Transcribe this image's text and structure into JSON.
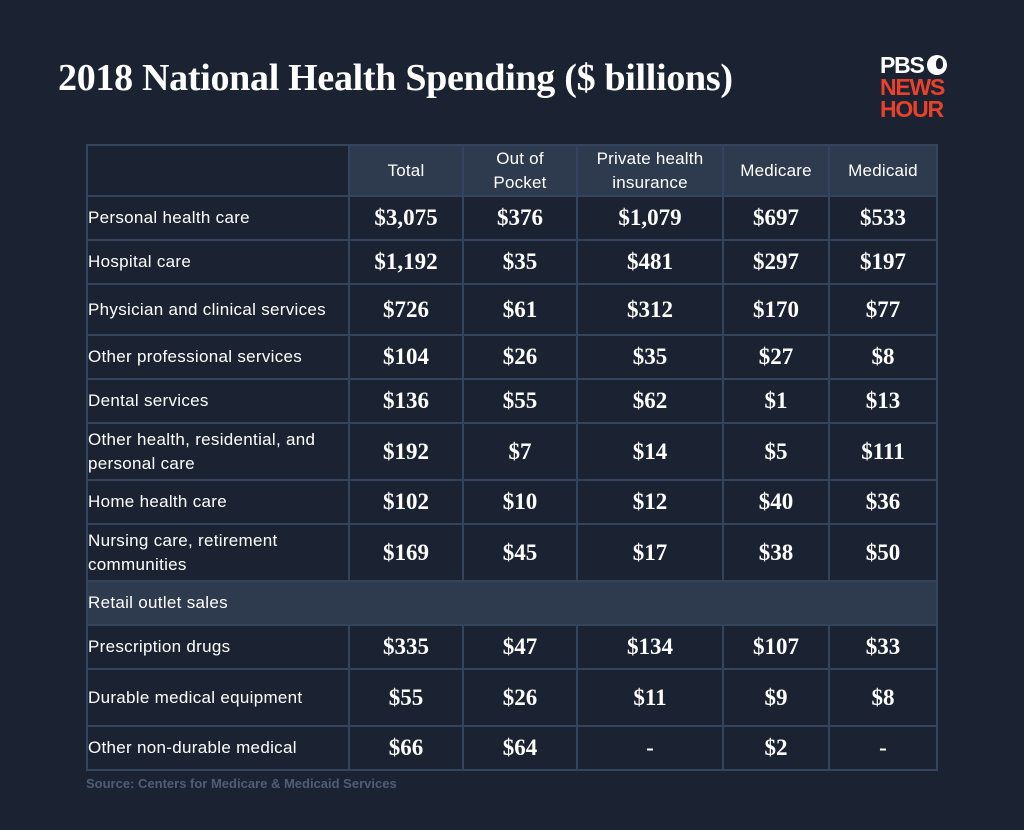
{
  "title": "2018 National Health Spending ($ billions)",
  "logo": {
    "line1": "PBS",
    "line2": "NEWS",
    "line3": "HOUR"
  },
  "colors": {
    "background": "#1b2332",
    "header_fill": "#2e3a4e",
    "grid": "#34445c",
    "logo_red": "#e8412c"
  },
  "chart_data": {
    "type": "table",
    "title": "2018 National Health Spending ($ billions)",
    "columns": [
      "Total",
      "Out of Pocket",
      "Private health insurance",
      "Medicare",
      "Medicaid"
    ],
    "rows": [
      {
        "label": "Personal health care",
        "values": [
          "$3,075",
          "$376",
          "$1,079",
          "$697",
          "$533"
        ]
      },
      {
        "label": "Hospital care",
        "values": [
          "$1,192",
          "$35",
          "$481",
          "$297",
          "$197"
        ]
      },
      {
        "label": "Physician and clinical services",
        "values": [
          "$726",
          "$61",
          "$312",
          "$170",
          "$77"
        ]
      },
      {
        "label": "Other professional services",
        "values": [
          "$104",
          "$26",
          "$35",
          "$27",
          "$8"
        ]
      },
      {
        "label": "Dental services",
        "values": [
          "$136",
          "$55",
          "$62",
          "$1",
          "$13"
        ]
      },
      {
        "label": "Other health, residential, and personal care",
        "values": [
          "$192",
          "$7",
          "$14",
          "$5",
          "$111"
        ]
      },
      {
        "label": "Home health care",
        "values": [
          "$102",
          "$10",
          "$12",
          "$40",
          "$36"
        ]
      },
      {
        "label": "Nursing care, retirement communities",
        "values": [
          "$169",
          "$45",
          "$17",
          "$38",
          "$50"
        ]
      },
      {
        "label": "Retail outlet sales",
        "section": true
      },
      {
        "label": "Prescription drugs",
        "values": [
          "$335",
          "$47",
          "$134",
          "$107",
          "$33"
        ]
      },
      {
        "label": "Durable medical equipment",
        "values": [
          "$55",
          "$26",
          "$11",
          "$9",
          "$8"
        ]
      },
      {
        "label": "Other non-durable medical",
        "values": [
          "$66",
          "$64",
          "-",
          "$2",
          "-"
        ]
      }
    ]
  },
  "source": "Source: Centers for Medicare & Medicaid Services"
}
